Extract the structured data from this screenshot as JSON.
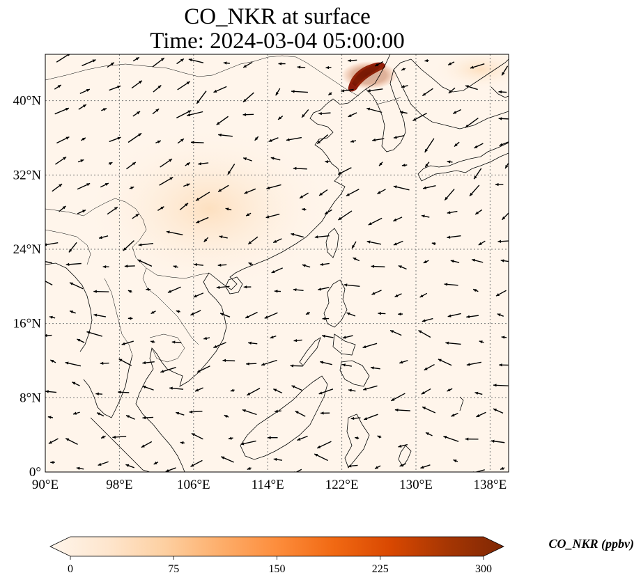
{
  "title": {
    "line1": "CO_NKR at surface",
    "line2": "Time: 2024-03-04 05:00:00"
  },
  "map": {
    "lon_range": [
      90,
      140
    ],
    "lat_range": [
      0,
      45
    ],
    "lon_ticks": [
      {
        "value": 90,
        "label": "90°E"
      },
      {
        "value": 98,
        "label": "98°E"
      },
      {
        "value": 106,
        "label": "106°E"
      },
      {
        "value": 114,
        "label": "114°E"
      },
      {
        "value": 122,
        "label": "122°E"
      },
      {
        "value": 130,
        "label": "130°E"
      },
      {
        "value": 138,
        "label": "138°E"
      }
    ],
    "lat_ticks": [
      {
        "value": 0,
        "label": "0°"
      },
      {
        "value": 8,
        "label": "8°N"
      },
      {
        "value": 16,
        "label": "16°N"
      },
      {
        "value": 24,
        "label": "24°N"
      },
      {
        "value": 32,
        "label": "32°N"
      },
      {
        "value": 40,
        "label": "40°N"
      }
    ],
    "gridlines": true,
    "background_color": "#fff5eb",
    "coast_color": "#000000",
    "high_concentration_region": {
      "lon": [
        124.5,
        127.5
      ],
      "lat": [
        41.5,
        44
      ],
      "value_ppbv": 300
    }
  },
  "colorbar": {
    "label": "CO_NKR (ppbv)",
    "range": [
      0,
      300
    ],
    "ticks": [
      {
        "value": 0,
        "label": "0"
      },
      {
        "value": 75,
        "label": "75"
      },
      {
        "value": 150,
        "label": "150"
      },
      {
        "value": 225,
        "label": "225"
      },
      {
        "value": 300,
        "label": "300"
      }
    ],
    "colormap": [
      "#fff5eb",
      "#fee6ce",
      "#fdd0a2",
      "#fdae6b",
      "#fd8d3c",
      "#f16913",
      "#d94801",
      "#a63603",
      "#7f2704"
    ],
    "extend": "both"
  }
}
